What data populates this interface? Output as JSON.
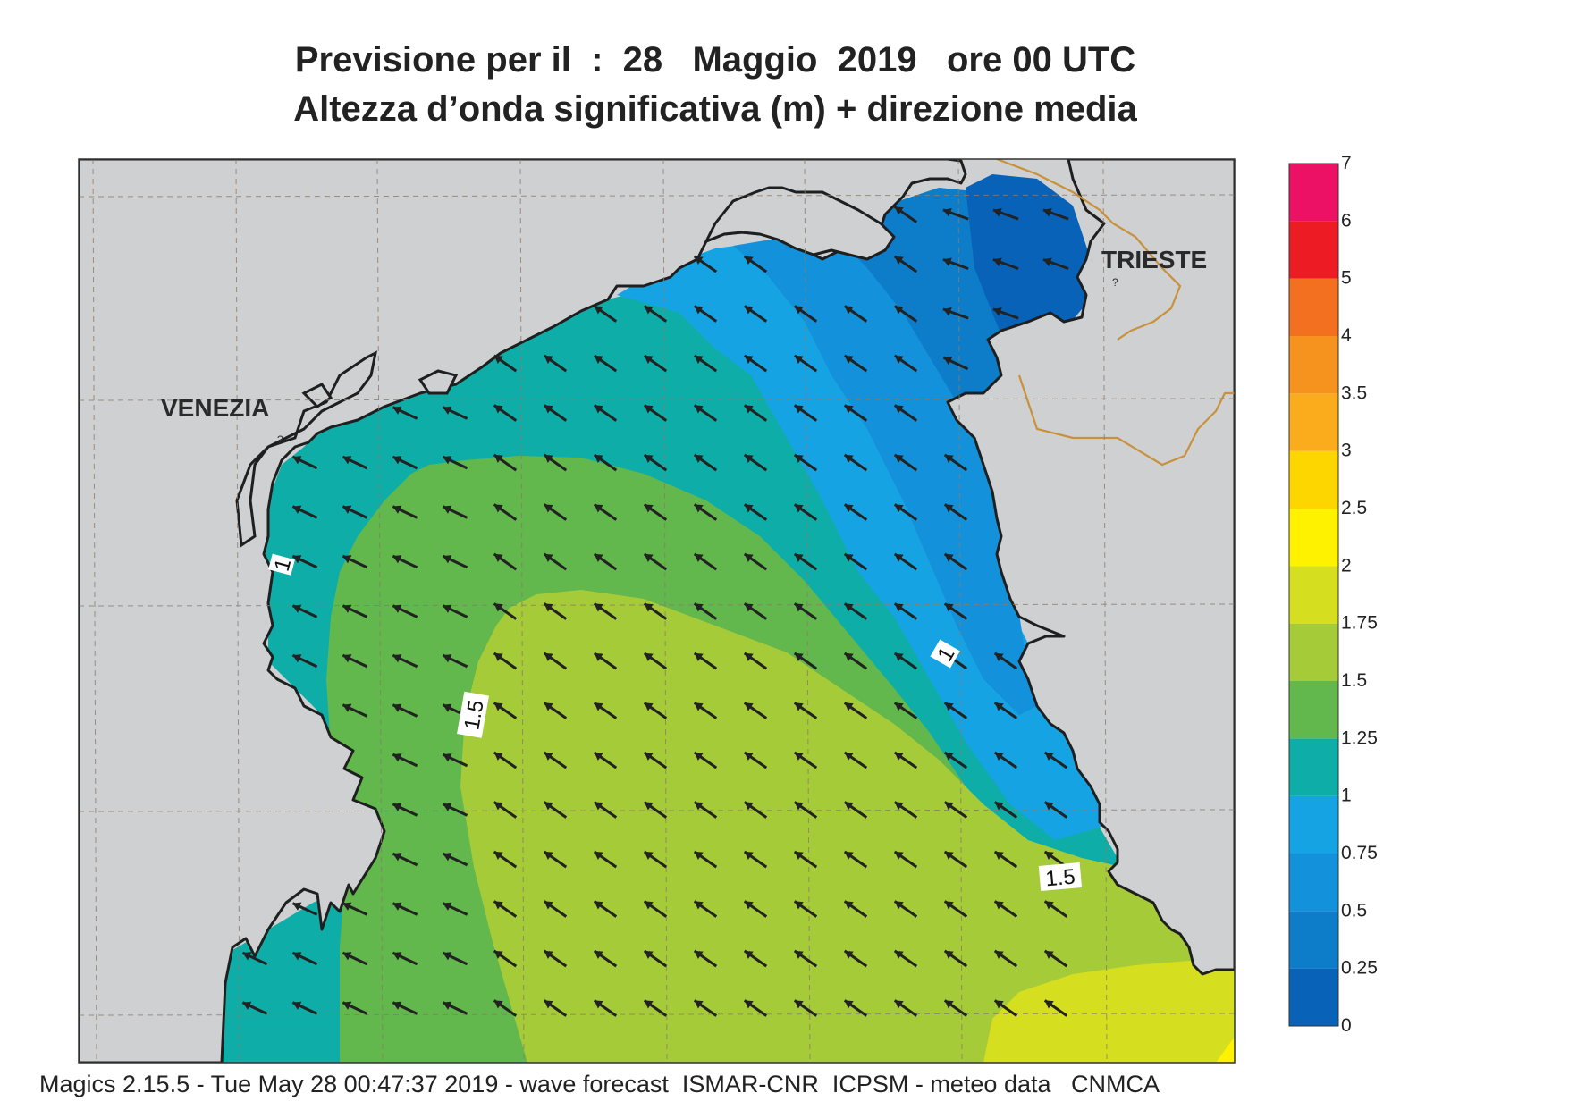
{
  "title_line1": "Previsione per il  :  28   Maggio  2019   ore 00 UTC",
  "title_line2": "Altezza d’onda significativa (m) + direzione media",
  "cities": {
    "venezia": "VENEZIA",
    "trieste": "TRIESTE"
  },
  "contour_labels": {
    "c1_west": "1",
    "c1_east": "1",
    "c15_west": "1.5",
    "c15_east": "1.5"
  },
  "legend": {
    "ticks": [
      "0",
      "0.25",
      "0.5",
      "0.75",
      "1",
      "1.25",
      "1.5",
      "1.75",
      "2",
      "2.5",
      "3",
      "3.5",
      "4",
      "5",
      "6",
      "7"
    ],
    "colors": [
      "#0863b8",
      "#0d7cc9",
      "#1491db",
      "#16a3e3",
      "#0fada8",
      "#62b84c",
      "#a6cb39",
      "#d6df1f",
      "#fff200",
      "#fdd600",
      "#fbac1c",
      "#f6921e",
      "#f37021",
      "#ed1c24",
      "#ec1164"
    ]
  },
  "footer": "Magics 2.15.5 - Tue May 28 00:47:37 2019 - wave forecast  ISMAR-CNR  ICPSM - meteo data   CNMCA",
  "colors": {
    "land": "#cfd0d2",
    "coast": "#1f1f1f",
    "border": "#c8913a",
    "grid": "#8c7b6a",
    "arrow": "#222222"
  }
}
